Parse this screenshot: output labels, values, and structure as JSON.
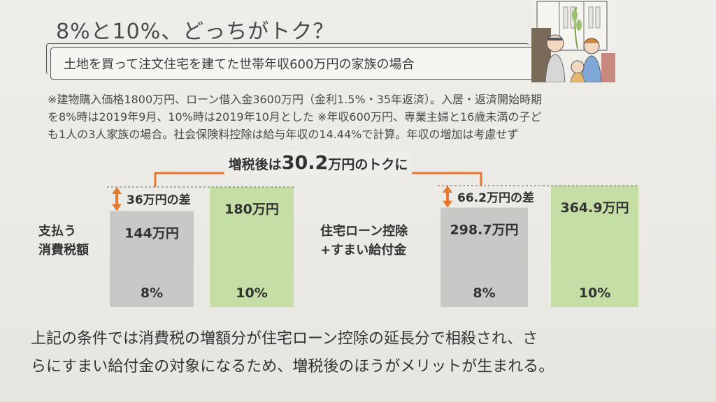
{
  "title": "8%と10%、どっちがトク？",
  "subtitle": "土地を買って注文住宅を建てた世帯年収600万円の家族の場合",
  "note_lines": [
    "※建物購入価格1800万円、ローン借入金3600万円（金利1.5%・35年返済）。入居・返済開始時期",
    "を8%時は2019年9月、10%時は2019年10月とした ※年収600万円、専業主婦と16歳未満の子ど",
    "も1人の3人家族の場合。社会保険料控除は給与年収の14.44%で計算。年収の増加は考慮せず"
  ],
  "bracket_label": {
    "prefix": "増税後は",
    "value": "30.2",
    "suffix": "万円のトクに"
  },
  "left_label": {
    "line1": "支払う",
    "line2": "消費税額"
  },
  "right_label": {
    "line1": "住宅ローン控除",
    "line2": "+すまい給付金"
  },
  "bottom_lines": [
    "上記の条件では消費税の増額分が住宅ローン控除の延長分で相殺され、さ",
    "らにすまい給付金の対象になるため、増税後のほうがメリットが生まれる。"
  ],
  "colors": {
    "bar_8": "#c8c8c6",
    "bar_10": "#c5dea6",
    "accent": "#e8762c"
  },
  "chart_data": [
    {
      "type": "bar",
      "title": "支払う消費税額",
      "categories": [
        "8%",
        "10%"
      ],
      "values": [
        144,
        180
      ],
      "value_labels": [
        "144万円",
        "180万円"
      ],
      "difference_label": "36万円の差"
    },
    {
      "type": "bar",
      "title": "住宅ローン控除+すまい給付金",
      "categories": [
        "8%",
        "10%"
      ],
      "values": [
        298.7,
        364.9
      ],
      "value_labels": [
        "298.7万円",
        "364.9万円"
      ],
      "difference_label": "66.2万円の差"
    }
  ]
}
